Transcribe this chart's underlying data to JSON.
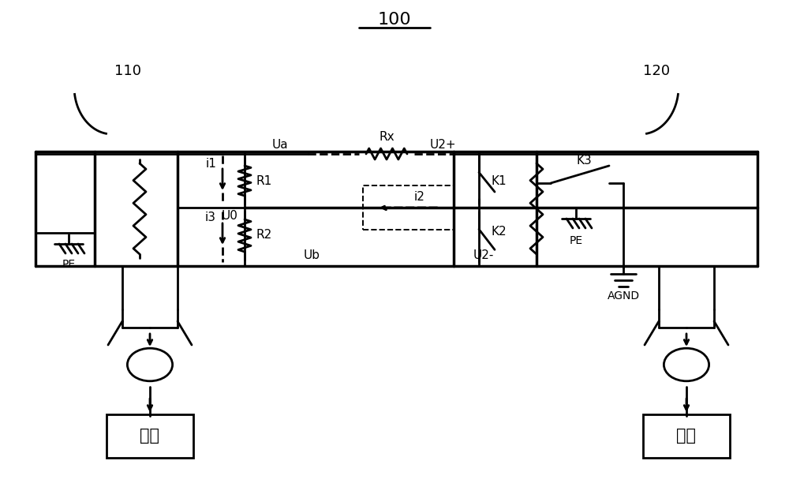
{
  "title": "100",
  "label_110": "110",
  "label_120": "120",
  "label_Ua": "Ua",
  "label_Ub": "Ub",
  "label_U0": "U0",
  "label_Rx": "Rx",
  "label_U2plus": "U2+",
  "label_U2minus": "U2-",
  "label_R1": "R1",
  "label_R2": "R2",
  "label_i1": "i1",
  "label_i2": "i2",
  "label_i3": "i3",
  "label_K1": "K1",
  "label_K2": "K2",
  "label_K3": "K3",
  "label_PE_left": "PE",
  "label_PE_right": "PE",
  "label_AGND": "AGND",
  "label_load_left": "负载",
  "label_load_right": "负载",
  "line_color": "#000000",
  "bg_color": "#ffffff",
  "fig_width": 10.0,
  "fig_height": 6.36
}
